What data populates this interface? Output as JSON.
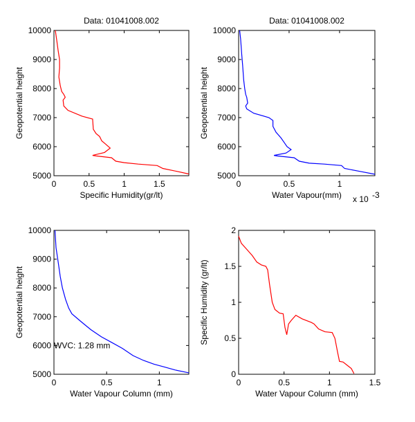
{
  "chart_data": [
    {
      "type": "line",
      "title": "Data: 01041008.002",
      "xlabel": "Specific Humidity(gr/lt)",
      "ylabel": "Geopotential height",
      "xlim": [
        0,
        1.92
      ],
      "ylim": [
        5000,
        10000
      ],
      "xticks": [
        0,
        0.5,
        1,
        1.5
      ],
      "xtick_labels": [
        "0",
        "0.5",
        "1",
        "1.5"
      ],
      "yticks": [
        5000,
        6000,
        7000,
        8000,
        9000,
        10000
      ],
      "ytick_labels": [
        "5000",
        "6000",
        "7000",
        "8000",
        "9000",
        "10000"
      ],
      "color": "#ff0000",
      "series": [
        {
          "name": "specific-humidity",
          "x": [
            0.02,
            0.04,
            0.06,
            0.08,
            0.08,
            0.07,
            0.09,
            0.11,
            0.14,
            0.16,
            0.13,
            0.14,
            0.2,
            0.4,
            0.55,
            0.56,
            0.6,
            0.65,
            0.68,
            0.73,
            0.8,
            0.72,
            0.55,
            0.6,
            0.82,
            0.88,
            1.0,
            1.2,
            1.47,
            1.55,
            1.75,
            1.92
          ],
          "y": [
            10000,
            9650,
            9300,
            9000,
            8700,
            8400,
            8100,
            7900,
            7800,
            7700,
            7600,
            7400,
            7250,
            7050,
            6950,
            6600,
            6450,
            6350,
            6200,
            6100,
            5950,
            5800,
            5700,
            5680,
            5620,
            5500,
            5450,
            5400,
            5350,
            5250,
            5150,
            5060
          ]
        }
      ]
    },
    {
      "type": "line",
      "title": "Data: 01041008.002",
      "xlabel": "Water Vapour(mm)",
      "ylabel": "Geopotential height",
      "x_multiplier": "x 10",
      "x_multiplier_exp": "-3",
      "xlim": [
        0,
        1.35
      ],
      "ylim": [
        5000,
        10000
      ],
      "xticks": [
        0,
        0.5,
        1
      ],
      "xtick_labels": [
        "0",
        "0.5",
        "1"
      ],
      "yticks": [
        5000,
        6000,
        7000,
        8000,
        9000,
        10000
      ],
      "ytick_labels": [
        "5000",
        "6000",
        "7000",
        "8000",
        "9000",
        "10000"
      ],
      "color": "#0000ff",
      "series": [
        {
          "name": "water-vapour",
          "x": [
            0.01,
            0.02,
            0.03,
            0.04,
            0.05,
            0.06,
            0.07,
            0.08,
            0.09,
            0.07,
            0.08,
            0.15,
            0.3,
            0.34,
            0.34,
            0.37,
            0.42,
            0.45,
            0.48,
            0.52,
            0.47,
            0.35,
            0.38,
            0.55,
            0.6,
            0.7,
            0.85,
            1.02,
            1.05,
            1.2,
            1.35
          ],
          "y": [
            10000,
            9700,
            9200,
            8800,
            8300,
            8000,
            7800,
            7700,
            7500,
            7400,
            7300,
            7150,
            7000,
            6900,
            6700,
            6500,
            6300,
            6150,
            6000,
            5900,
            5780,
            5700,
            5680,
            5620,
            5500,
            5430,
            5400,
            5350,
            5250,
            5150,
            5050
          ]
        }
      ]
    },
    {
      "type": "line",
      "title": "",
      "xlabel": "Water Vapour Column (mm)",
      "ylabel": "Geopotential height",
      "xlim": [
        0,
        1.28
      ],
      "ylim": [
        5000,
        10000
      ],
      "xticks": [
        0,
        0.5,
        1
      ],
      "xtick_labels": [
        "0",
        "0.5",
        "1"
      ],
      "yticks": [
        5000,
        6000,
        7000,
        8000,
        9000,
        10000
      ],
      "ytick_labels": [
        "5000",
        "6000",
        "7000",
        "8000",
        "9000",
        "10000"
      ],
      "annotation": "WVC: 1.28 mm",
      "annotation_color": "#ff0000",
      "color": "#0000ff",
      "series": [
        {
          "name": "water-vapour-column",
          "x": [
            0.01,
            0.02,
            0.04,
            0.06,
            0.08,
            0.11,
            0.14,
            0.17,
            0.25,
            0.35,
            0.45,
            0.55,
            0.65,
            0.75,
            0.85,
            0.95,
            1.05,
            1.15,
            1.28
          ],
          "y": [
            10000,
            9400,
            8900,
            8400,
            8000,
            7600,
            7300,
            7100,
            6850,
            6550,
            6300,
            6100,
            5900,
            5650,
            5480,
            5350,
            5250,
            5150,
            5050
          ]
        }
      ]
    },
    {
      "type": "line",
      "title": "",
      "xlabel": "Water Vapour Column (mm)",
      "ylabel": "Specific Humidity (gr/lt)",
      "xlim": [
        0,
        1.5
      ],
      "ylim": [
        0,
        2
      ],
      "xticks": [
        0,
        0.5,
        1,
        1.5
      ],
      "xtick_labels": [
        "0",
        "0.5",
        "1",
        "1.5"
      ],
      "yticks": [
        0,
        0.5,
        1,
        1.5,
        2
      ],
      "ytick_labels": [
        "0",
        "0.5",
        "1",
        "1.5",
        "2"
      ],
      "color": "#ff0000",
      "series": [
        {
          "name": "sh-vs-wvc",
          "x": [
            0,
            0.03,
            0.08,
            0.15,
            0.2,
            0.25,
            0.3,
            0.32,
            0.34,
            0.37,
            0.4,
            0.45,
            0.49,
            0.51,
            0.53,
            0.55,
            0.58,
            0.63,
            0.7,
            0.8,
            0.83,
            0.88,
            0.95,
            1.03,
            1.06,
            1.09,
            1.11,
            1.15,
            1.2,
            1.24,
            1.27
          ],
          "y": [
            1.92,
            1.82,
            1.75,
            1.65,
            1.56,
            1.52,
            1.5,
            1.45,
            1.25,
            1.0,
            0.9,
            0.85,
            0.84,
            0.65,
            0.55,
            0.7,
            0.75,
            0.82,
            0.77,
            0.72,
            0.7,
            0.63,
            0.59,
            0.58,
            0.5,
            0.3,
            0.18,
            0.17,
            0.12,
            0.08,
            0.01
          ]
        }
      ]
    }
  ]
}
